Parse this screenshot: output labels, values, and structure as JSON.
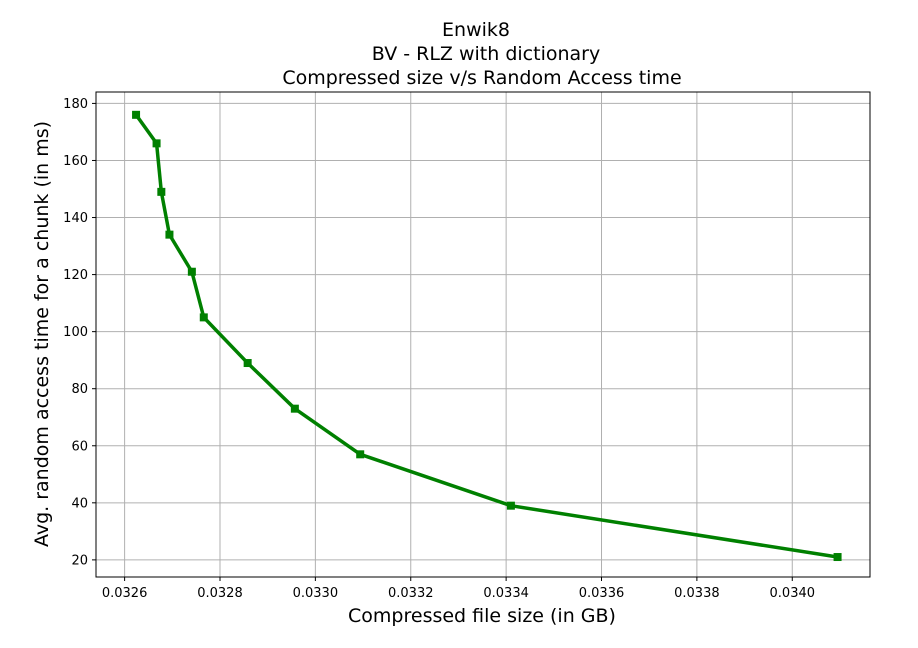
{
  "chart_data": {
    "type": "line",
    "title_lines": [
      "Enwik8",
      "BV - RLZ with dictionary",
      "Compressed size v/s Random Access time"
    ],
    "xlabel": "Compressed file size (in GB)",
    "ylabel": "Avg. random access time for a chunk (in ms)",
    "xlim": [
      0.03254,
      0.034163
    ],
    "ylim": [
      14,
      184
    ],
    "xticks": [
      "0.0326",
      "0.0328",
      "0.0330",
      "0.0332",
      "0.0334",
      "0.0336",
      "0.0338",
      "0.0340"
    ],
    "yticks": [
      "20",
      "40",
      "60",
      "80",
      "100",
      "120",
      "140",
      "160",
      "180"
    ],
    "grid": true,
    "series": [
      {
        "color": "#008000",
        "marker": "square",
        "x": [
          0.032624,
          0.032667,
          0.032677,
          0.032694,
          0.032741,
          0.032766,
          0.032858,
          0.032957,
          0.033094,
          0.03341,
          0.034095
        ],
        "y": [
          176,
          166,
          149,
          134,
          121,
          105,
          89,
          73,
          57,
          39,
          21
        ]
      }
    ]
  }
}
